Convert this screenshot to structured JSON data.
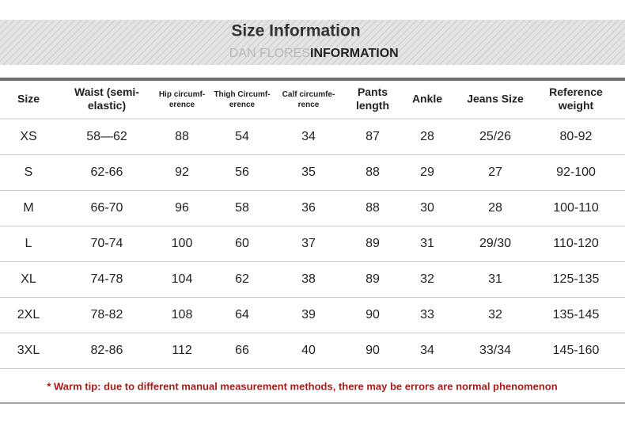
{
  "header": {
    "title": "Size Information",
    "subtitle_light": "DAN FLORES",
    "subtitle_dark": "INFORMATION"
  },
  "table": {
    "columns": [
      [
        "Size"
      ],
      [
        "Waist (semi-",
        "elastic)"
      ],
      [
        "Hip circumf-",
        "erence"
      ],
      [
        "Thigh Circumf-",
        "erence"
      ],
      [
        "Calf circumfe-",
        "rence"
      ],
      [
        "Pants",
        "length"
      ],
      [
        "Ankle"
      ],
      [
        "Jeans Size"
      ],
      [
        "Reference",
        "weight"
      ]
    ],
    "rows": [
      [
        "XS",
        "58—62",
        "88",
        "54",
        "34",
        "87",
        "28",
        "25/26",
        "80-92"
      ],
      [
        "S",
        "62-66",
        "92",
        "56",
        "35",
        "88",
        "29",
        "27",
        "92-100"
      ],
      [
        "M",
        "66-70",
        "96",
        "58",
        "36",
        "88",
        "30",
        "28",
        "100-110"
      ],
      [
        "L",
        "70-74",
        "100",
        "60",
        "37",
        "89",
        "31",
        "29/30",
        "110-120"
      ],
      [
        "XL",
        "74-78",
        "104",
        "62",
        "38",
        "89",
        "32",
        "31",
        "125-135"
      ],
      [
        "2XL",
        "78-82",
        "108",
        "64",
        "39",
        "90",
        "33",
        "32",
        "135-145"
      ],
      [
        "3XL",
        "82-86",
        "112",
        "66",
        "40",
        "90",
        "34",
        "33/34",
        "145-160"
      ]
    ]
  },
  "note": "* Warm tip: due to different manual measurement methods, there may be errors are normal phenomenon"
}
